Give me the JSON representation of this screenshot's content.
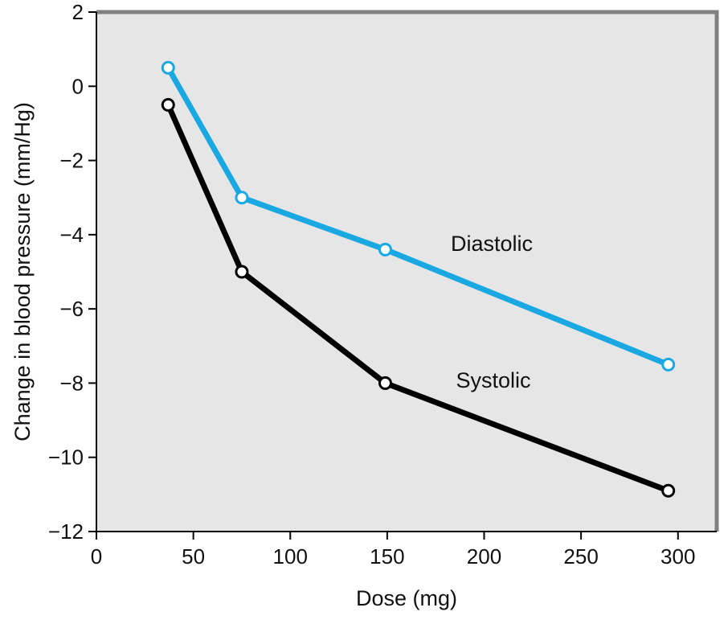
{
  "chart_data": {
    "type": "line",
    "title": "",
    "xlabel": "Dose (mg)",
    "ylabel": "Change in blood pressure (mm/Hg)",
    "xlim": [
      0,
      320
    ],
    "ylim": [
      -12,
      2
    ],
    "xticks": [
      0,
      50,
      100,
      150,
      200,
      250,
      300
    ],
    "yticks": [
      2,
      0,
      -2,
      -4,
      -6,
      -8,
      -10,
      -12
    ],
    "ytick_labels": [
      "2",
      "0",
      "−2",
      "−4",
      "−6",
      "−8",
      "−10",
      "−12"
    ],
    "grid": false,
    "legend": "none (direct labels)",
    "series": [
      {
        "name": "Diastolic",
        "color": "#1aa8e3",
        "x": [
          37,
          75,
          149,
          295
        ],
        "y": [
          0.5,
          -3.0,
          -4.4,
          -7.5
        ]
      },
      {
        "name": "Systolic",
        "color": "#000000",
        "x": [
          37,
          75,
          149,
          295
        ],
        "y": [
          -0.5,
          -5.0,
          -8.0,
          -10.9
        ]
      }
    ]
  },
  "colors": {
    "plot_background": "#e6e6e6",
    "frame": "#808080",
    "axis": "#000000"
  }
}
